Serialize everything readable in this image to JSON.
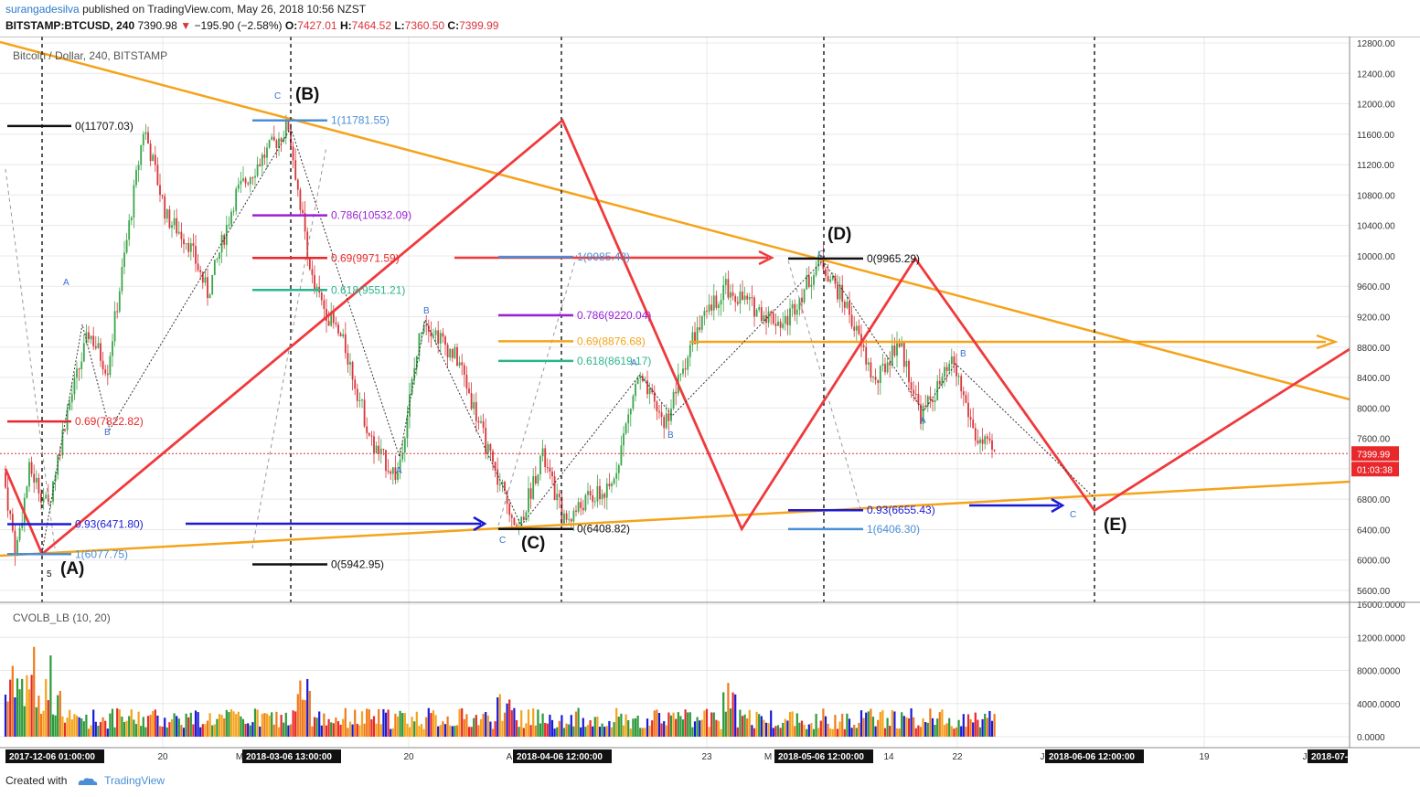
{
  "header": {
    "user": "surangadesilva",
    "published": "published on TradingView.com, May 26, 2018 10:56 NZST",
    "symbol": "BITSTAMP:BTCUSD, 240",
    "last": "7390.98",
    "change": "−195.90 (−2.58%)",
    "o_label": "O:",
    "o": "7427.01",
    "h_label": "H:",
    "h": "7464.52",
    "l_label": "L:",
    "l": "7360.50",
    "c_label": "C:",
    "c": "7399.99"
  },
  "footer": {
    "created": "Created with",
    "brand": "TradingView"
  },
  "colors": {
    "orange": "#f5a31a",
    "red": "#f0393c",
    "blue": "#1a1ad6",
    "grid": "#e8e8e8",
    "green": "#2ea042"
  },
  "chart_data": {
    "type": "candlestick",
    "title": "Bitcoin / Dollar, 240, BITSTAMP",
    "price_axis": {
      "ticks": [
        "12800.00",
        "12400.00",
        "12000.00",
        "11600.00",
        "11200.00",
        "10800.00",
        "10400.00",
        "10000.00",
        "9600.00",
        "9200.00",
        "8800.00",
        "8400.00",
        "8000.00",
        "7600.00",
        "7200.00",
        "6800.00",
        "6400.00",
        "6000.00",
        "5600.00"
      ],
      "range": [
        5400,
        12900
      ],
      "last_price_tag": "7399.99",
      "countdown_tag": "01:03:38"
    },
    "volume_indicator": {
      "label": "CVOLB_LB (10, 20)",
      "ticks": [
        "16000.0000",
        "12000.0000",
        "8000.0000",
        "4000.0000",
        "0.0000"
      ],
      "range": [
        0,
        16000
      ]
    },
    "time_axis": {
      "minor_labels": [
        "20",
        "20",
        "23",
        "14",
        "22",
        "19"
      ],
      "partial_labels": [
        "M",
        "A",
        "M",
        "J",
        "J"
      ],
      "dated_labels": [
        "2017-12-06 01:00:00",
        "2018-03-06 13:00:00",
        "2018-04-06 12:00:00",
        "2018-05-06 12:00:00",
        "2018-06-06 12:00:00",
        "2018-07-"
      ]
    },
    "wave_labels": [
      "(A)",
      "(B)",
      "(C)",
      "(D)",
      "(E)"
    ],
    "wave_points": [
      {
        "label": "(A)",
        "date": "2017-12-06",
        "price": 6077.75
      },
      {
        "label": "(B)",
        "date": "2018-03-06",
        "price": 11781.55
      },
      {
        "label": "(C)",
        "date": "2018-04-06",
        "price": 6408.82
      },
      {
        "label": "(D)",
        "date": "2018-05-06",
        "price": 9965.29
      },
      {
        "label": "(E)",
        "date": "2018-06-06",
        "price": 6650
      }
    ],
    "sub_wave_labels": [
      "5",
      "A",
      "B",
      "C",
      "A",
      "B",
      "C",
      "A",
      "B",
      "C",
      "A",
      "B",
      "C"
    ],
    "fib_levels": [
      {
        "text": "0(11707.03)",
        "price": 11707.03,
        "color": "#111111"
      },
      {
        "text": "0.69(7822.82)",
        "price": 7822.82,
        "color": "#e8282b"
      },
      {
        "text": "0.93(6471.80)",
        "price": 6471.8,
        "color": "#1a1ad6"
      },
      {
        "text": "1(6077.75)",
        "price": 6077.75,
        "color": "#4a8fd6"
      },
      {
        "text": "1(11781.55)",
        "price": 11781.55,
        "color": "#4a8fd6"
      },
      {
        "text": "0.786(10532.09)",
        "price": 10532.09,
        "color": "#9b1fd6"
      },
      {
        "text": "0.69(9971.59)",
        "price": 9971.59,
        "color": "#e8282b"
      },
      {
        "text": "0.618(9551.21)",
        "price": 9551.21,
        "color": "#2bb58c"
      },
      {
        "text": "0(5942.95)",
        "price": 5942.95,
        "color": "#111111"
      },
      {
        "text": "1(9985.43)",
        "price": 9985.43,
        "color": "#4a8fd6"
      },
      {
        "text": "0.786(9220.04)",
        "price": 9220.04,
        "color": "#9b1fd6"
      },
      {
        "text": "0.69(8876.68)",
        "price": 8876.68,
        "color": "#f5a31a"
      },
      {
        "text": "0.618(8619.17)",
        "price": 8619.17,
        "color": "#2bb58c"
      },
      {
        "text": "0(6408.82)",
        "price": 6408.82,
        "color": "#111111"
      },
      {
        "text": "0(9965.29)",
        "price": 9965.29,
        "color": "#111111"
      },
      {
        "text": "0.93(6655.43)",
        "price": 6655.43,
        "color": "#1a1ad6"
      },
      {
        "text": "1(6406.30)",
        "price": 6406.3,
        "color": "#4a8fd6"
      }
    ]
  }
}
